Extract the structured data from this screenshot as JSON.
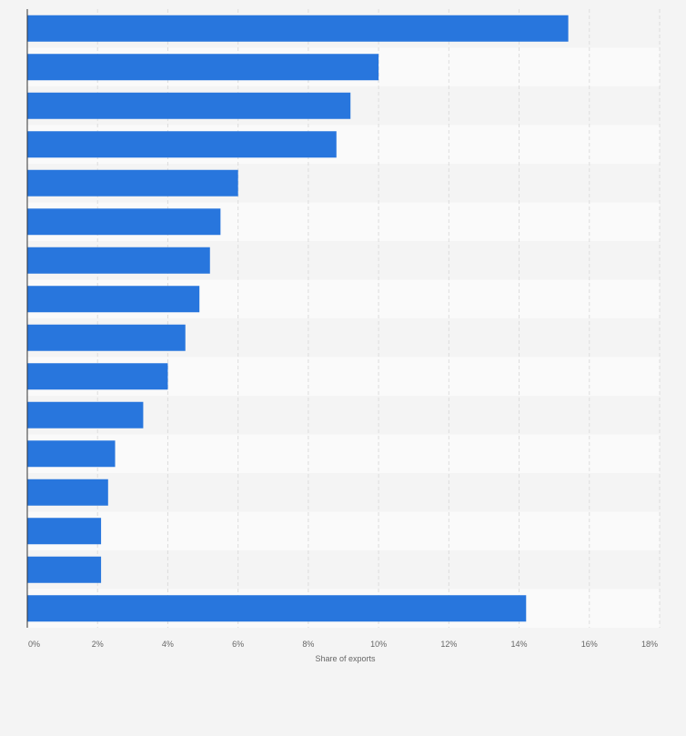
{
  "chart_data": {
    "type": "bar",
    "orientation": "horizontal",
    "title": "",
    "xlabel": "Share of exports",
    "ylabel": "",
    "xlim": [
      0,
      18
    ],
    "x_unit": "%",
    "x_ticks": [
      "0%",
      "2%",
      "4%",
      "6%",
      "8%",
      "10%",
      "12%",
      "14%",
      "16%",
      "18%"
    ],
    "grid": true,
    "categories": [
      "",
      "",
      "",
      "",
      "",
      "",
      "",
      "",
      "",
      "",
      "",
      "",
      "",
      "",
      "",
      ""
    ],
    "values": [
      15.4,
      10.0,
      9.2,
      8.8,
      6.0,
      5.5,
      5.2,
      4.9,
      4.5,
      4.0,
      3.3,
      2.5,
      2.3,
      2.1,
      2.1,
      14.2
    ],
    "series": [
      {
        "name": "Share of exports",
        "values": [
          15.4,
          10.0,
          9.2,
          8.8,
          6.0,
          5.5,
          5.2,
          4.9,
          4.5,
          4.0,
          3.3,
          2.5,
          2.3,
          2.1,
          2.1,
          14.2
        ]
      }
    ]
  },
  "colors": {
    "page_background": "#f4f4f4",
    "band_light": "#fafafa",
    "band_dark": "#f4f4f4",
    "bar": "#2876dd",
    "grid": "#dddddd",
    "axis": "#333333",
    "text": "#666666"
  }
}
